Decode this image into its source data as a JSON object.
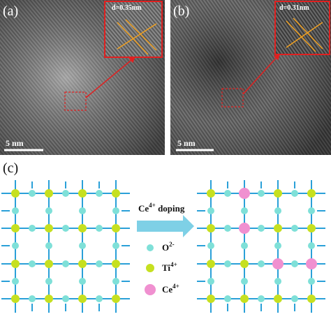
{
  "panels": [
    {
      "label": "(a)",
      "inset_label": "d=0.35nm",
      "scale_bar": "5 nm"
    },
    {
      "label": "(b)",
      "inset_label": "d=0.31nm",
      "scale_bar": "5 nm"
    }
  ],
  "schematic": {
    "label": "(c)",
    "arrow": {
      "species": "Ce",
      "charge": "4+",
      "text": " doping"
    },
    "legend": [
      {
        "species": "O",
        "charge": "2-"
      },
      {
        "species": "Ti",
        "charge": "4+"
      },
      {
        "species": "Ce",
        "charge": "4+"
      }
    ]
  }
}
